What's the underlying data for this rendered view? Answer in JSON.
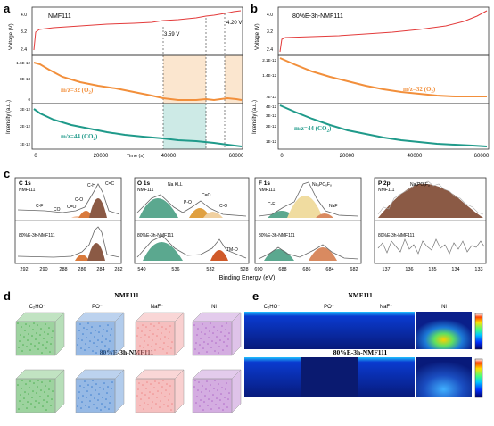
{
  "panel_letters": {
    "a": "a",
    "b": "b",
    "c": "c",
    "d": "d",
    "e": "e"
  },
  "panel_a": {
    "label": "NMF111",
    "volt_ylabel": "Voltage (V)",
    "volt_ticks": [
      "4.0",
      "3.2",
      "2.4"
    ],
    "o2_ticks": [
      "1.6E-12",
      "8E-13",
      "0"
    ],
    "co2_ticks": [
      "3E-12",
      "2E-12",
      "1E-12"
    ],
    "x_ticks": [
      "0",
      "20000",
      "40000",
      "60000"
    ],
    "xlabel": "Time (s)",
    "annot_359": "3.59 V",
    "annot_420": "4.20 V",
    "o2_label": "m/z=32 (O",
    "o2_sub": "2",
    "co2_label": "m/z=44 (CO",
    "co2_sub": "2",
    "close": ")",
    "intensity_ylabel": "Intensity (a.u.)"
  },
  "panel_b": {
    "label": "80%E-3h-NMF111",
    "volt_ticks": [
      "4.0",
      "3.2",
      "2.4"
    ],
    "o2_ticks": [
      "2.1E-12",
      "1.4E-12",
      "7E-13"
    ],
    "co2_ticks": [
      "4E-12",
      "3E-12",
      "2E-12",
      "1E-12"
    ],
    "x_ticks": [
      "0",
      "20000",
      "40000",
      "60000"
    ],
    "xlabel": "Time (s)",
    "o2_label": "m/z=32 (O",
    "co2_label": "m/z=44 (CO",
    "sub": "2",
    "close": ")"
  },
  "panel_c": {
    "xlabel": "Binding Energy (eV)",
    "c1s": {
      "title": "C 1s",
      "top": "NMF111",
      "bottom": "80%E-3h-NMF111",
      "ticks": [
        "292",
        "290",
        "288",
        "286",
        "284",
        "282"
      ],
      "peaks": [
        "C-H",
        "C=C",
        "C-O",
        "C=O",
        "CO",
        "C-F"
      ]
    },
    "o1s": {
      "title": "O 1s",
      "top": "NMF111",
      "bottom": "80%E-3h-NMF111",
      "ticks": [
        "540",
        "536",
        "532",
        "528"
      ],
      "peaks": [
        "Na KLL",
        "C=O",
        "P-O",
        "C-O",
        "TM-O"
      ]
    },
    "f1s": {
      "title": "F 1s",
      "top": "NMF111",
      "bottom": "80%E-3h-NMF111",
      "ticks": [
        "690",
        "688",
        "686",
        "684",
        "682"
      ],
      "peaks": [
        "NaₓPOᵧFᵤ",
        "C-F",
        "NaF"
      ]
    },
    "p2p": {
      "title": "P 2p",
      "top": "NMF111",
      "bottom": "80%E-3h-NMF111",
      "ticks": [
        "137",
        "136",
        "135",
        "134",
        "133"
      ],
      "peaks": [
        "NaₓPOᵧFᵤ"
      ]
    }
  },
  "panel_d": {
    "title_top": "NMF111",
    "title_bottom": "80%E-3h-NMF111",
    "species": [
      "C₂HO⁻",
      "PO⁻",
      "NaF⁻",
      "Ni"
    ],
    "colors": [
      "#4caf50",
      "#3f7fcf",
      "#ef8a8a",
      "#b06ac8"
    ]
  },
  "panel_e": {
    "title_top": "NMF111",
    "title_bottom": "80%E-3h-NMF111",
    "species": [
      "C₂HO⁻",
      "PO⁻",
      "NaF⁻",
      "Ni"
    ]
  },
  "colors": {
    "voltage": "#e33b3b",
    "o2": "#f28f3b",
    "co2": "#1f9a8a",
    "shade_orange": "#fbe6cf",
    "shade_teal": "#cdeae6",
    "map_bg": "#0a1f8a"
  }
}
